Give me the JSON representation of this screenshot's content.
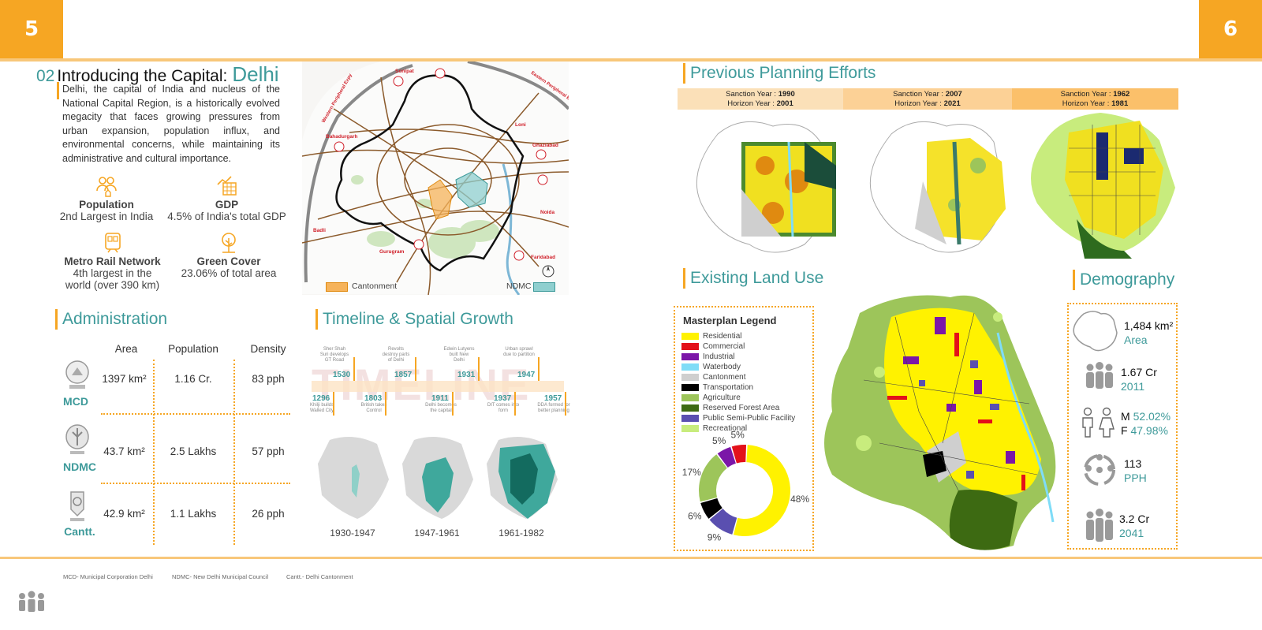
{
  "pages": {
    "left": "5",
    "right": "6"
  },
  "intro": {
    "number": "02",
    "title_prefix": "Introducing the Capital:",
    "title_city": "Delhi",
    "paragraph": "Delhi, the capital of India and nucleus of the National Capital Region, is a historically evolved megacity that faces growing pressures from urban expansion, population influx, and environmental concerns, while maintaining its administrative and cultural importance."
  },
  "indicators": [
    {
      "title": "Population",
      "value": "2nd Largest in India",
      "icon": "population-icon"
    },
    {
      "title": "GDP",
      "value": "4.5% of India's total GDP",
      "icon": "gdp-chart-icon"
    },
    {
      "title": "Metro Rail Network",
      "value": "4th largest in the world (over 390 km)",
      "icon": "metro-train-icon"
    },
    {
      "title": "Green Cover",
      "value": "23.06% of total area",
      "icon": "tree-icon"
    }
  ],
  "location_map": {
    "legend_cantonment": "Cantonment",
    "legend_ndmc": "NDMC",
    "places": [
      "Sonipat",
      "Bahadurgarh",
      "Loni",
      "Ghaziabad",
      "Noida",
      "Faridabad",
      "Gurugram",
      "Badli"
    ],
    "roads": [
      "Western Peripheral Expy",
      "Eastern Peripheral Expy"
    ],
    "colors": {
      "cantonment": "#f6b35a",
      "ndmc": "#8fcfcf",
      "boundary": "#111111",
      "roads": "#8b5a2b"
    }
  },
  "administration": {
    "title": "Administration",
    "headers": [
      "Area",
      "Population",
      "Density"
    ],
    "rows": [
      {
        "name": "MCD",
        "area": "1397 km²",
        "population": "1.16 Cr.",
        "density": "83 pph"
      },
      {
        "name": "NDMC",
        "area": "43.7 km²",
        "population": "2.5 Lakhs",
        "density": "57 pph"
      },
      {
        "name": "Cantt.",
        "area": "42.9 km²",
        "population": "1.1 Lakhs",
        "density": "26 pph"
      }
    ]
  },
  "timeline": {
    "title": "Timeline & Spatial Growth",
    "watermark": "TIMELINE",
    "top_events": [
      {
        "year": "1530",
        "note": "Sher Shah Suri develops GT Road"
      },
      {
        "year": "1857",
        "note": "Revolts destroy parts of Delhi"
      },
      {
        "year": "1931",
        "note": "Edwin Lutyens built New Delhi"
      },
      {
        "year": "1947",
        "note": "Urban sprawl due to partition"
      }
    ],
    "bottom_events": [
      {
        "year": "1296",
        "note": "Khilji builds Walled City"
      },
      {
        "year": "1803",
        "note": "British takes Control"
      },
      {
        "year": "1911",
        "note": "Delhi becomes the capital"
      },
      {
        "year": "1937",
        "note": "DIT comes into form"
      },
      {
        "year": "1957",
        "note": "DDA formed for better planning"
      }
    ],
    "growth_maps": [
      "1930-1947",
      "1947-1961",
      "1961-1982"
    ]
  },
  "previous_planning": {
    "title": "Previous Planning  Efforts",
    "plans": [
      {
        "sanction_label": "Sanction Year : ",
        "sanction": "1990",
        "horizon_label": "Horizon Year : ",
        "horizon": "2001",
        "color": "#fbe0b8"
      },
      {
        "sanction_label": "Sanction Year : ",
        "sanction": "2007",
        "horizon_label": "Horizon Year : ",
        "horizon": "2021",
        "color": "#fcd196"
      },
      {
        "sanction_label": "Sanction Year : ",
        "sanction": "1962",
        "horizon_label": "Horizon Year : ",
        "horizon": "1981",
        "color": "#fbc06a"
      }
    ]
  },
  "land_use": {
    "title": "Existing Land Use",
    "legend_title": "Masterplan Legend",
    "legend": [
      {
        "label": "Residential",
        "color": "#fff200"
      },
      {
        "label": "Commercial",
        "color": "#e3101a"
      },
      {
        "label": "Industrial",
        "color": "#7b16a8"
      },
      {
        "label": "Waterbody",
        "color": "#7fdcf7"
      },
      {
        "label": "Cantonment",
        "color": "#cfcfcf"
      },
      {
        "label": "Transportation",
        "color": "#000000"
      },
      {
        "label": "Agriculture",
        "color": "#9dc55a"
      },
      {
        "label": "Reserved Forest Area",
        "color": "#3d6a12"
      },
      {
        "label": "Public Semi-Public Facility",
        "color": "#5a4fb0"
      },
      {
        "label": "Recreational",
        "color": "#c8ec7d"
      }
    ]
  },
  "chart_data": {
    "type": "pie",
    "title": "",
    "donut": true,
    "slices": [
      {
        "label": "Residential",
        "value": 48,
        "display": "48%",
        "color": "#fff200"
      },
      {
        "label": "Public Semi-Public Facility",
        "value": 9,
        "display": "9%",
        "color": "#5a4fb0"
      },
      {
        "label": "Transportation",
        "value": 6,
        "display": "6%",
        "color": "#000000"
      },
      {
        "label": "Agriculture",
        "value": 17,
        "display": "17%",
        "color": "#9dc55a"
      },
      {
        "label": "Industrial",
        "value": 5,
        "display": "5%",
        "color": "#7b16a8"
      },
      {
        "label": "Commercial",
        "value": 5,
        "display": "5%",
        "color": "#e3101a"
      }
    ]
  },
  "demography": {
    "title": "Demography",
    "area_value": "1,484 km²",
    "area_label": "Area",
    "pop2011_value": "1.67 Cr",
    "pop2011_label": "2011",
    "male_prefix": "M",
    "male": "52.02%",
    "female_prefix": "F",
    "female": "47.98%",
    "density_value": "113",
    "density_label": "PPH",
    "pop2041_value": "3.2 Cr",
    "pop2041_label": "2041"
  },
  "footnotes": [
    "MCD- Municipal Corporation Delhi",
    "NDMC- New Delhi Municipal Council",
    "Cantt.- Delhi Cantonment"
  ]
}
